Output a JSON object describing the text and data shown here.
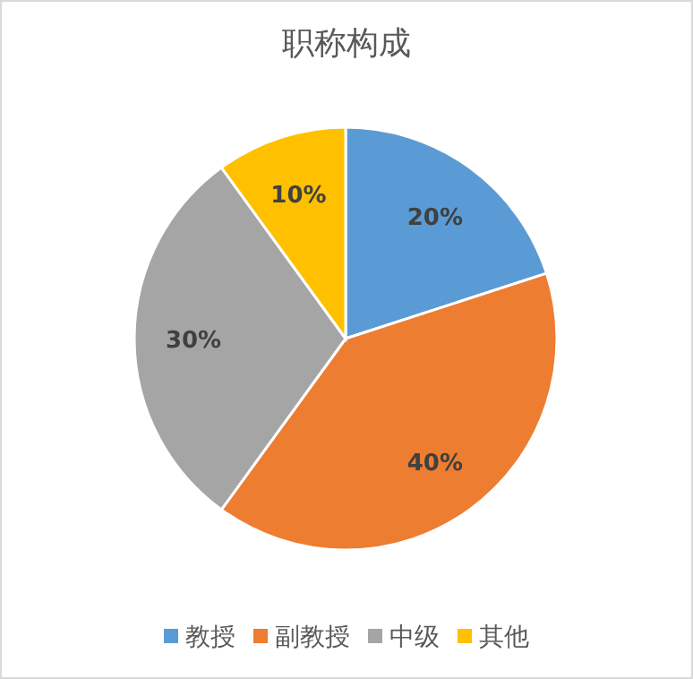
{
  "chart_data": {
    "type": "pie",
    "title": "职称构成",
    "categories": [
      "教授",
      "副教授",
      "中级",
      "其他"
    ],
    "values": [
      20,
      40,
      30,
      10
    ],
    "colors": [
      "#5b9bd5",
      "#ed7d31",
      "#a5a5a5",
      "#ffc000"
    ],
    "value_labels": [
      "20%",
      "40%",
      "30%",
      "10%"
    ],
    "legend": "bottom"
  }
}
